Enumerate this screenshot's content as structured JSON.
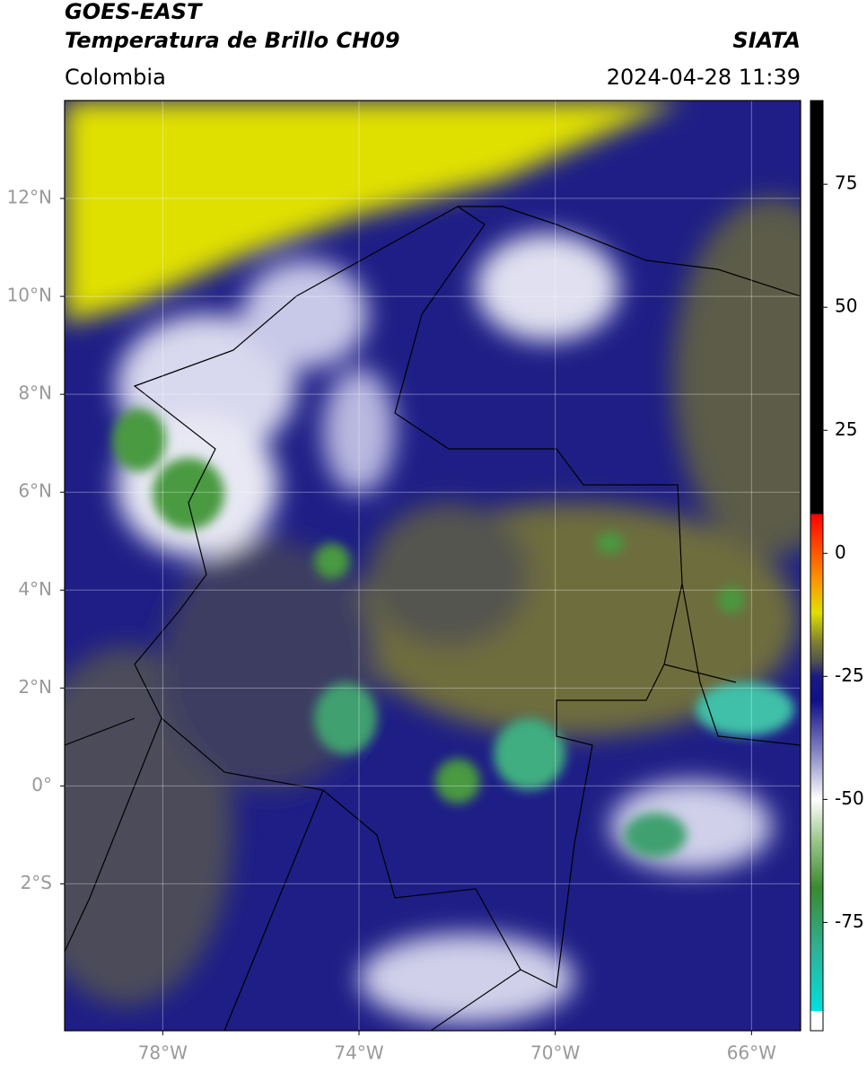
{
  "header": {
    "title": "GOES-EAST",
    "subtitle": "Temperatura de Brillo CH09",
    "source": "SIATA",
    "region": "Colombia",
    "timestamp": "2024-04-28 11:39"
  },
  "map": {
    "xlim": [
      -80,
      -65
    ],
    "ylim": [
      -5,
      14
    ],
    "xticks": [
      {
        "value": -78,
        "label": "78°W"
      },
      {
        "value": -74,
        "label": "74°W"
      },
      {
        "value": -70,
        "label": "70°W"
      },
      {
        "value": -66,
        "label": "66°W"
      }
    ],
    "yticks": [
      {
        "value": 12,
        "label": "12°N"
      },
      {
        "value": 10,
        "label": "10°N"
      },
      {
        "value": 8,
        "label": "8°N"
      },
      {
        "value": 6,
        "label": "6°N"
      },
      {
        "value": 4,
        "label": "4°N"
      },
      {
        "value": 2,
        "label": "2°N"
      },
      {
        "value": 0,
        "label": "0°"
      },
      {
        "value": -2,
        "label": "2°S"
      }
    ],
    "grid": true
  },
  "colorbar": {
    "clim": [
      -97,
      92
    ],
    "ticks": [
      75,
      50,
      25,
      0,
      -25,
      -50,
      -75
    ],
    "colormap": [
      {
        "value": -97,
        "color": "#ffffff"
      },
      {
        "value": -93,
        "color": "#ffffff"
      },
      {
        "value": -93,
        "color": "#00e0e0"
      },
      {
        "value": -80,
        "color": "#30b090"
      },
      {
        "value": -68,
        "color": "#3a8a30"
      },
      {
        "value": -58,
        "color": "#a0c890"
      },
      {
        "value": -50,
        "color": "#ffffff"
      },
      {
        "value": -40,
        "color": "#8080c0"
      },
      {
        "value": -30,
        "color": "#10108a"
      },
      {
        "value": -25,
        "color": "#1a1a80"
      },
      {
        "value": -22,
        "color": "#505050"
      },
      {
        "value": -18,
        "color": "#808030"
      },
      {
        "value": -12,
        "color": "#e0e000"
      },
      {
        "value": -5,
        "color": "#ff9000"
      },
      {
        "value": 8,
        "color": "#ff0000"
      },
      {
        "value": 8,
        "color": "#000000"
      },
      {
        "value": 92,
        "color": "#000000"
      }
    ]
  }
}
